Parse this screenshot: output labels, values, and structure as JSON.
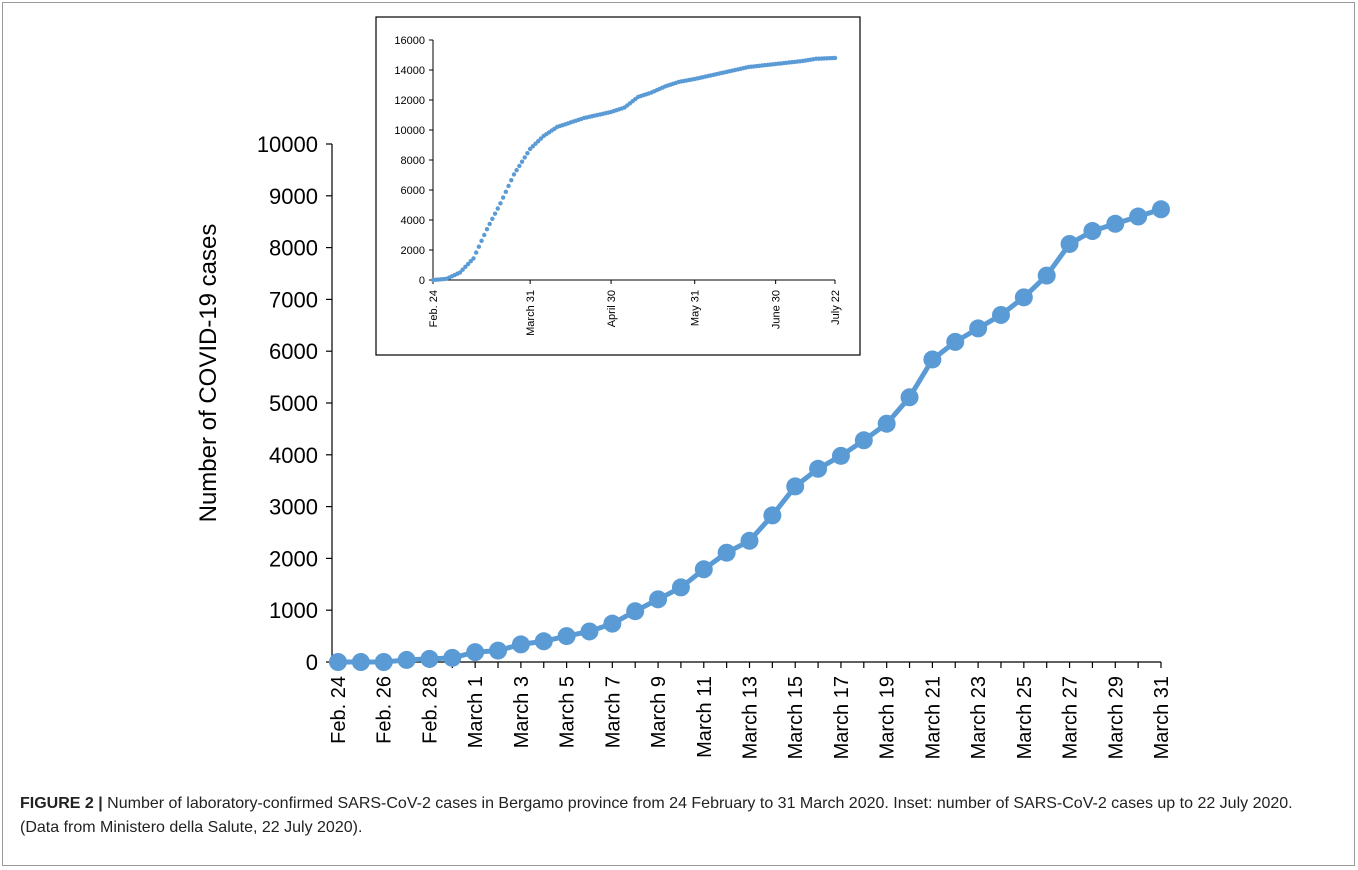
{
  "chart_data": [
    {
      "type": "line",
      "title": "",
      "ylabel": "Number of COVID-19 cases",
      "xlabel": "",
      "ylim": [
        0,
        10000
      ],
      "yticks": [
        "0",
        "1000",
        "2000",
        "3000",
        "4000",
        "5000",
        "6000",
        "7000",
        "8000",
        "9000",
        "10000"
      ],
      "x": [
        "Feb. 24",
        "Feb. 25",
        "Feb. 26",
        "Feb. 27",
        "Feb. 28",
        "Feb. 29",
        "March 1",
        "March 2",
        "March 3",
        "March 4",
        "March 5",
        "March 6",
        "March 7",
        "March 8",
        "March 9",
        "March 10",
        "March 11",
        "March 12",
        "March 13",
        "March 14",
        "March 15",
        "March 16",
        "March 17",
        "March 18",
        "March 19",
        "March 20",
        "March 21",
        "March 22",
        "March 23",
        "March 24",
        "March 25",
        "March 26",
        "March 27",
        "March 28",
        "March 29",
        "March 30",
        "March 31"
      ],
      "xtick_labels": [
        "Feb. 24",
        "Feb. 26",
        "Feb. 28",
        "March 1",
        "March 3",
        "March 5",
        "March 7",
        "March 9",
        "March 11",
        "March 13",
        "March 15",
        "March 17",
        "March 19",
        "March 21",
        "March 23",
        "March 25",
        "March 27",
        "March 29",
        "March 31"
      ],
      "series": [
        {
          "values": [
            0,
            0,
            0,
            40,
            60,
            80,
            190,
            220,
            340,
            400,
            500,
            590,
            740,
            980,
            1210,
            1440,
            1790,
            2110,
            2340,
            2830,
            3390,
            3730,
            3980,
            4280,
            4600,
            5110,
            5840,
            6180,
            6440,
            6700,
            7040,
            7460,
            8070,
            8320,
            8460,
            8600,
            8740
          ],
          "color": "#5b9bd5"
        }
      ],
      "grid": false,
      "legend": "none"
    },
    {
      "type": "scatter",
      "title": "",
      "ylim": [
        0,
        16000
      ],
      "yticks": [
        "0",
        "2000",
        "4000",
        "6000",
        "8000",
        "10000",
        "12000",
        "14000",
        "16000"
      ],
      "xtick_labels": [
        "Feb. 24",
        "March 31",
        "April 30",
        "May 31",
        "June 30",
        "July 22"
      ],
      "x_range": [
        "Feb. 24",
        "July 22"
      ],
      "series": [
        {
          "x": [
            "Feb. 24",
            "Feb. 29",
            "March 5",
            "March 10",
            "March 15",
            "March 20",
            "March 25",
            "March 31",
            "April 5",
            "April 10",
            "April 15",
            "April 20",
            "April 25",
            "April 30",
            "May 5",
            "May 10",
            "May 15",
            "May 20",
            "May 25",
            "May 31",
            "June 5",
            "June 10",
            "June 15",
            "June 20",
            "June 25",
            "June 30",
            "July 5",
            "July 10",
            "July 15",
            "July 22"
          ],
          "values": [
            0,
            80,
            500,
            1440,
            3390,
            5110,
            7040,
            8740,
            9600,
            10200,
            10500,
            10800,
            11000,
            11200,
            11500,
            12200,
            12500,
            12900,
            13200,
            13400,
            13600,
            13800,
            14000,
            14200,
            14300,
            14400,
            14500,
            14600,
            14750,
            14800
          ],
          "color": "#5b9bd5"
        }
      ],
      "grid": false,
      "legend": "none"
    }
  ],
  "caption": {
    "label": "FIGURE 2 |",
    "text": " Number of laboratory-confirmed SARS-CoV-2 cases in Bergamo province from 24 February to 31 March 2020. Inset: number of SARS-CoV-2 cases up to 22 July 2020. (Data from Ministero della Salute, 22 July 2020)."
  }
}
